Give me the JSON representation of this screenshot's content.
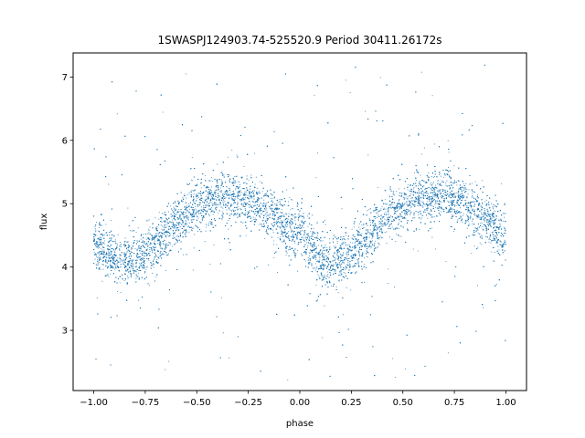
{
  "chart_data": {
    "type": "scatter",
    "title": "1SWASPJ124903.74-525520.9 Period 30411.26172s",
    "xlabel": "phase",
    "ylabel": "flux",
    "xlim": [
      -1.1,
      1.1
    ],
    "ylim": [
      2.05,
      7.38
    ],
    "xticks": [
      -1.0,
      -0.75,
      -0.5,
      -0.25,
      0.0,
      0.25,
      0.5,
      0.75,
      1.0
    ],
    "xtick_labels": [
      "−1.00",
      "−0.75",
      "−0.50",
      "−0.25",
      "0.00",
      "0.25",
      "0.50",
      "0.75",
      "1.00"
    ],
    "yticks": [
      3,
      4,
      5,
      6,
      7
    ],
    "ytick_labels": [
      "3",
      "4",
      "5",
      "6",
      "7"
    ],
    "grid": false,
    "marker_color": "#1f77b4",
    "profile": {
      "x": [
        -1.0,
        -0.9,
        -0.8,
        -0.7,
        -0.6,
        -0.5,
        -0.4,
        -0.3,
        -0.2,
        -0.1,
        0.0,
        0.1,
        0.15,
        0.2,
        0.3,
        0.4,
        0.5,
        0.6,
        0.7,
        0.8,
        0.9,
        1.0
      ],
      "y": [
        4.35,
        4.15,
        4.1,
        4.35,
        4.7,
        4.95,
        5.1,
        5.1,
        4.95,
        4.75,
        4.5,
        4.1,
        4.05,
        4.1,
        4.4,
        4.75,
        4.95,
        5.1,
        5.15,
        5.0,
        4.75,
        4.45
      ]
    },
    "scatter_half_width": 0.35,
    "outlier_range": [
      2.2,
      7.2
    ],
    "n_points": 14000
  }
}
